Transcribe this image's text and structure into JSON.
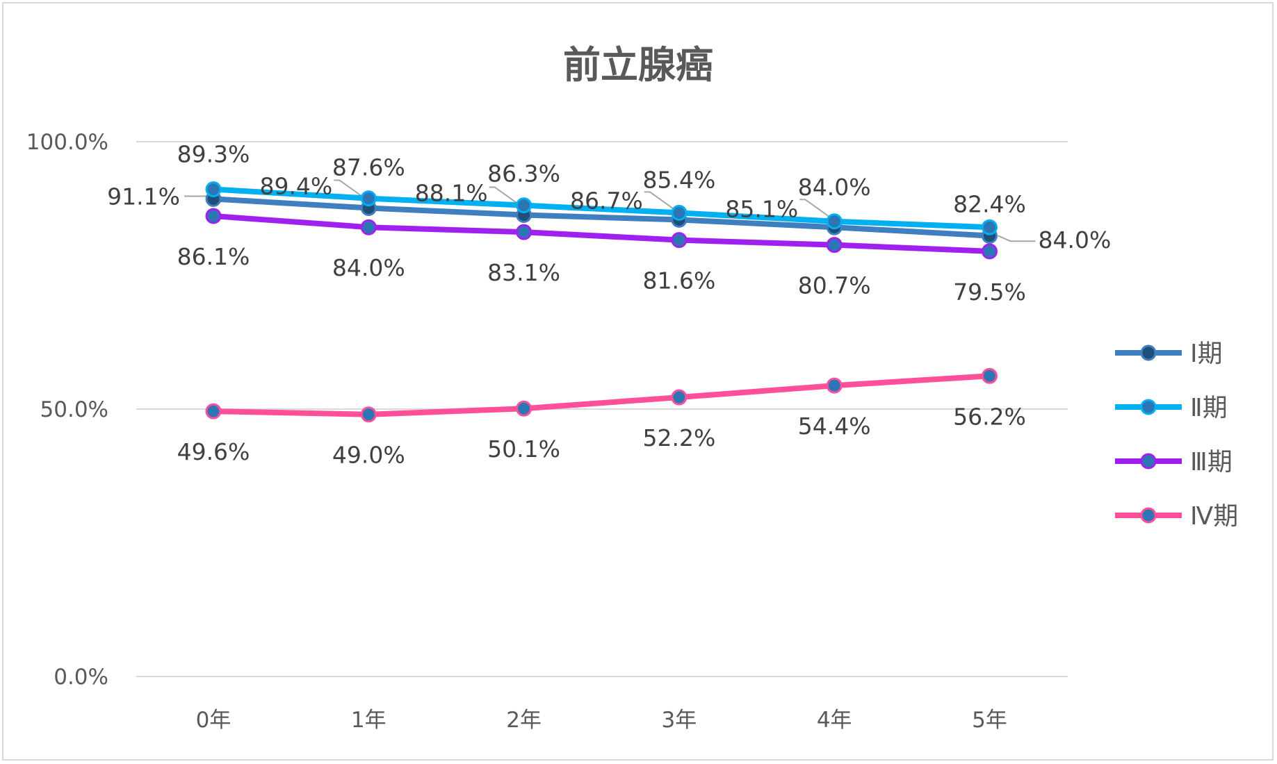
{
  "chart_data": {
    "type": "line",
    "title": "前立腺癌",
    "categories": [
      "0年",
      "1年",
      "2年",
      "3年",
      "4年",
      "5年"
    ],
    "ylim": [
      0,
      1
    ],
    "ytick_labels": [
      "0.0%",
      "50.0%",
      "100.0%"
    ],
    "grid": true,
    "legend_position": "right",
    "series": [
      {
        "name": "Ⅰ期",
        "values": [
          0.893,
          0.876,
          0.863,
          0.854,
          0.84,
          0.824
        ],
        "color": "#3f7fbf",
        "labels": [
          "89.3%",
          "87.6%",
          "86.3%",
          "85.4%",
          "84.0%",
          "82.4%"
        ]
      },
      {
        "name": "Ⅱ期",
        "values": [
          0.911,
          0.894,
          0.881,
          0.867,
          0.851,
          0.84
        ],
        "color": "#00b0f0",
        "labels": [
          "91.1%",
          "89.4%",
          "88.1%",
          "86.7%",
          "85.1%",
          "84.0%"
        ]
      },
      {
        "name": "Ⅲ期",
        "values": [
          0.861,
          0.84,
          0.831,
          0.816,
          0.807,
          0.795
        ],
        "color": "#a020f0",
        "labels": [
          "86.1%",
          "84.0%",
          "83.1%",
          "81.6%",
          "80.7%",
          "79.5%"
        ]
      },
      {
        "name": "Ⅳ期",
        "values": [
          0.496,
          0.49,
          0.501,
          0.522,
          0.544,
          0.562
        ],
        "color": "#ff4f9a",
        "labels": [
          "49.6%",
          "49.0%",
          "50.1%",
          "52.2%",
          "54.4%",
          "56.2%"
        ]
      }
    ]
  }
}
